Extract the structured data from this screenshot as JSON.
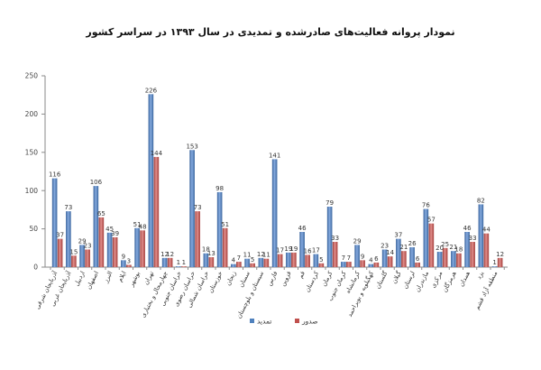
{
  "chart_data": {
    "type": "bar",
    "title": "نمودار پروانه فعالیت‌های صادرشده و تمدیدی در سال ۱۳۹۳ در سراسر کشور",
    "categories": [
      "آذربایجان شرقی",
      "آذربایجان غربی",
      "اردبیل",
      "اصفهان",
      "البرز",
      "ایلام",
      "بوشهر",
      "تهران",
      "چهارمحال و بختیاری",
      "خراسان جنوبی",
      "خراسان رضوی",
      "خراسان شمالی",
      "خوزستان",
      "زنجان",
      "سمنان",
      "سیستان و بلوچستان",
      "فارس",
      "قزوین",
      "قم",
      "کردستان",
      "کرمان",
      "کرمان جنوب",
      "کرمانشاه",
      "کهگیلویه و بویراحمد",
      "گلستان",
      "گیلان",
      "لرستان",
      "مازندران",
      "مرکزی",
      "هرمزگان",
      "همدان",
      "یزد",
      "منطقه آزاد قشم"
    ],
    "series": [
      {
        "name": "تمدید",
        "color": "#4f81bd",
        "values": [
          116,
          73,
          29,
          106,
          45,
          9,
          51,
          226,
          12,
          1,
          153,
          18,
          98,
          4,
          11,
          12,
          141,
          19,
          46,
          17,
          79,
          7,
          29,
          4,
          23,
          37,
          26,
          76,
          20,
          21,
          46,
          82,
          1
        ]
      },
      {
        "name": "صدور",
        "color": "#c0504d",
        "values": [
          37,
          15,
          23,
          65,
          39,
          3,
          48,
          144,
          12,
          1,
          73,
          13,
          51,
          7,
          5,
          11,
          17,
          19,
          16,
          5,
          33,
          7,
          9,
          6,
          14,
          21,
          6,
          57,
          25,
          18,
          33,
          44,
          12
        ]
      }
    ],
    "ylim": [
      0,
      250
    ],
    "yticks": [
      0,
      50,
      100,
      150,
      200,
      250
    ],
    "grid": false,
    "legend": "bottom"
  }
}
